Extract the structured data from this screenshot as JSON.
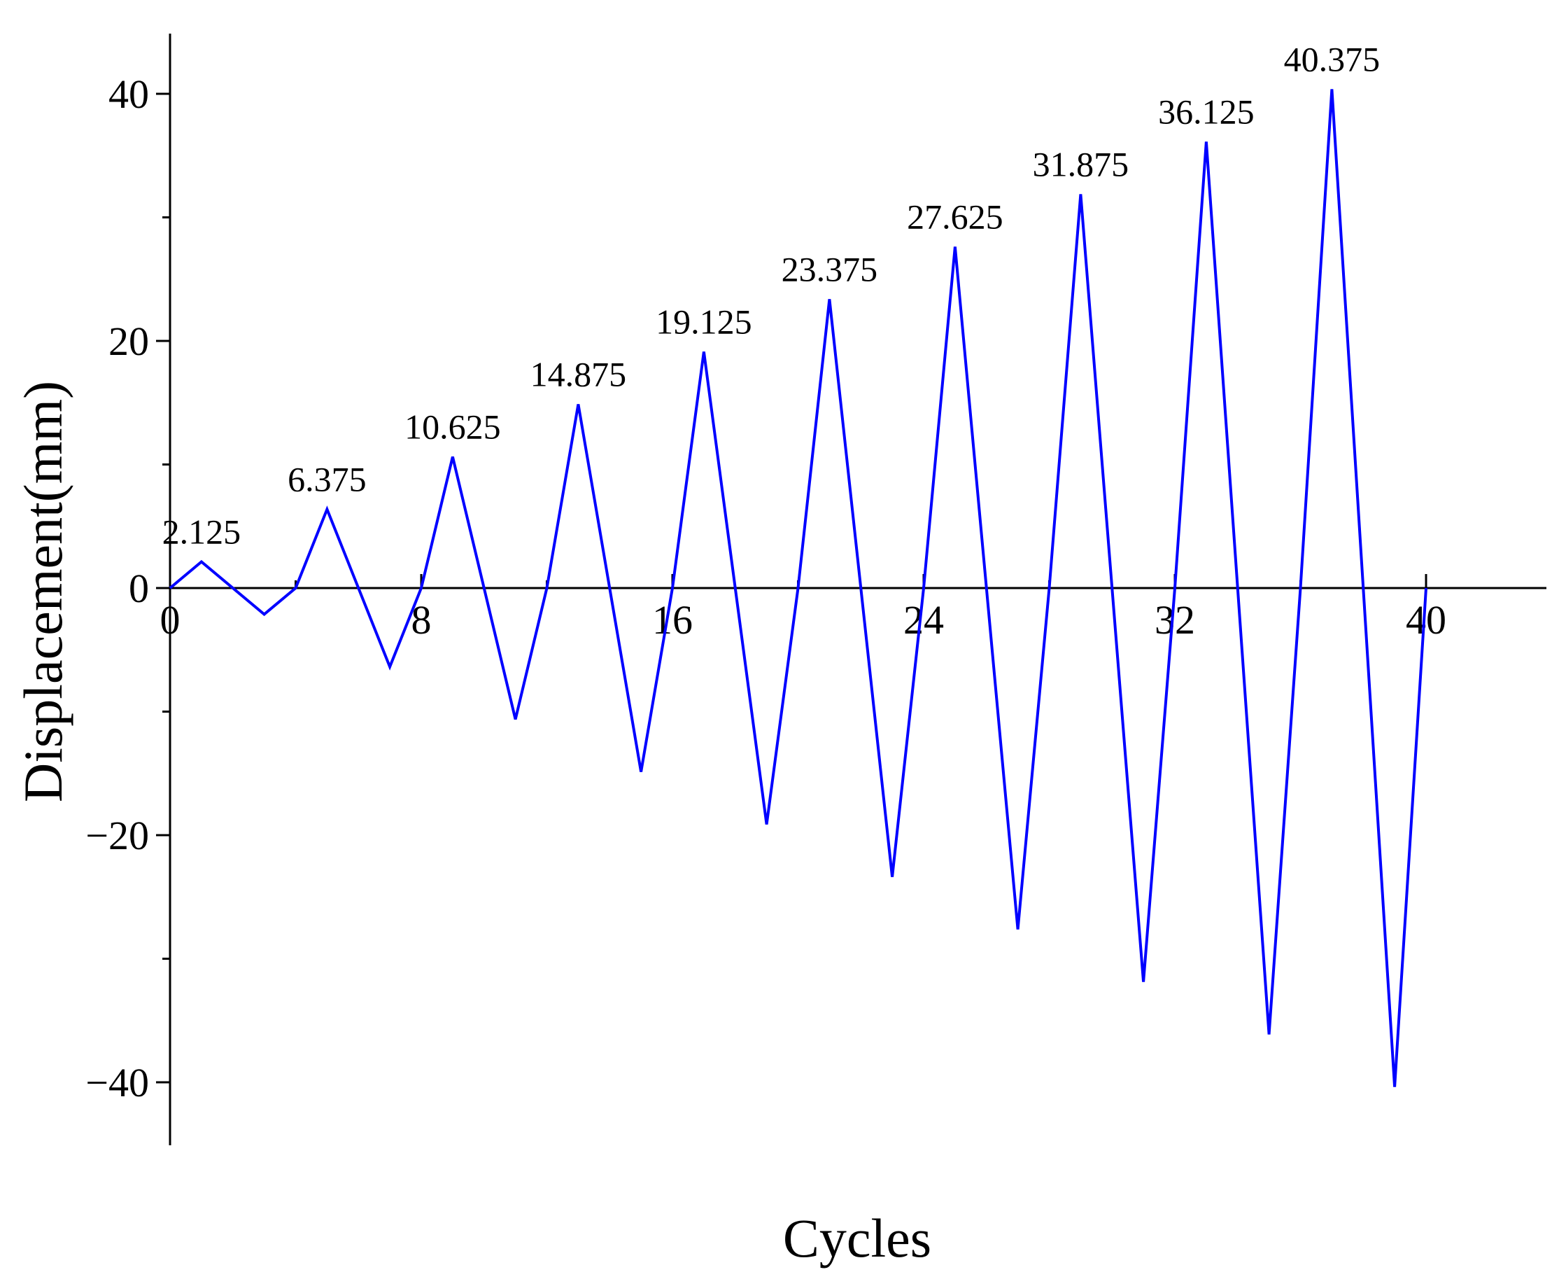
{
  "chart_data": {
    "type": "line",
    "xlabel": "Cycles",
    "ylabel": "Displacement(mm)",
    "xlim": [
      0,
      44
    ],
    "ylim": [
      -45,
      45
    ],
    "x_ticks": [
      0,
      8,
      16,
      24,
      32,
      40
    ],
    "y_ticks": [
      -40,
      -20,
      0,
      20,
      40
    ],
    "grid": false,
    "line_color": "#0000ff",
    "series": [
      {
        "x": [
          0,
          1,
          3,
          4,
          5,
          7,
          8,
          9,
          11,
          12,
          13,
          15,
          16,
          17,
          19,
          20,
          21,
          23,
          24,
          25,
          27,
          28,
          29,
          31,
          32,
          33,
          35,
          36,
          37,
          39,
          40
        ],
        "y": [
          0,
          2.125,
          -2.125,
          0,
          6.375,
          -6.375,
          0,
          10.625,
          -10.625,
          0,
          14.875,
          -14.875,
          0,
          19.125,
          -19.125,
          0,
          23.375,
          -23.375,
          0,
          27.625,
          -27.625,
          0,
          31.875,
          -31.875,
          0,
          36.125,
          -36.125,
          0,
          40.375,
          -40.375,
          0
        ]
      }
    ],
    "annotations": [
      {
        "text": "2.125",
        "x": 1,
        "y": 2.125
      },
      {
        "text": "6.375",
        "x": 5,
        "y": 6.375
      },
      {
        "text": "10.625",
        "x": 9,
        "y": 10.625
      },
      {
        "text": "14.875",
        "x": 13,
        "y": 14.875
      },
      {
        "text": "19.125",
        "x": 17,
        "y": 19.125
      },
      {
        "text": "23.375",
        "x": 21,
        "y": 23.375
      },
      {
        "text": "27.625",
        "x": 25,
        "y": 27.625
      },
      {
        "text": "31.875",
        "x": 29,
        "y": 31.875
      },
      {
        "text": "36.125",
        "x": 33,
        "y": 36.125
      },
      {
        "text": "40.375",
        "x": 37,
        "y": 40.375
      }
    ]
  }
}
